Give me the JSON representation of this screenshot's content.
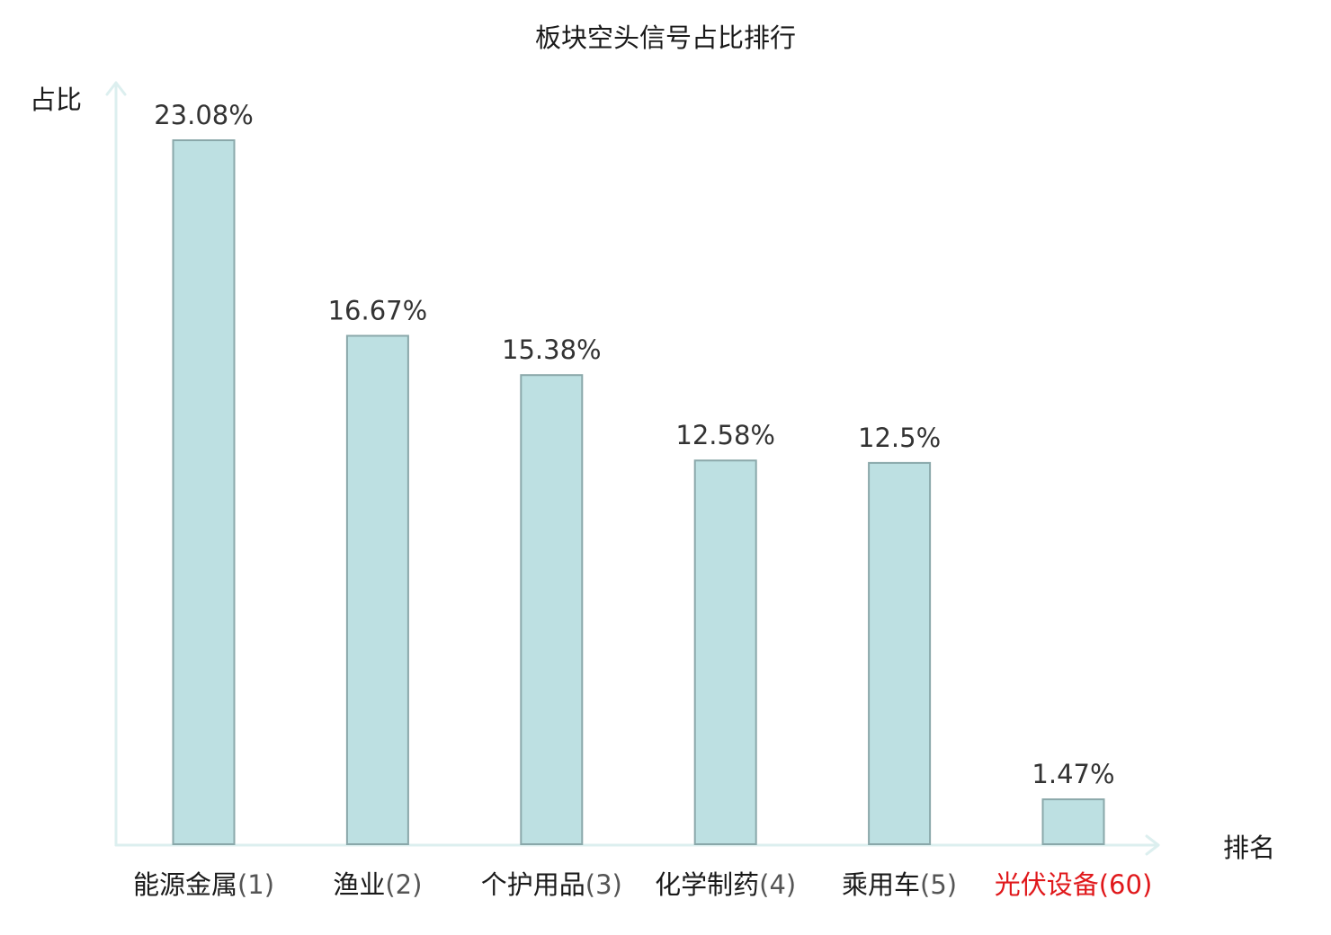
{
  "chart_data": {
    "type": "bar",
    "title": "板块空头信号占比排行",
    "ylabel": "占比",
    "xlabel": "排名",
    "categories": [
      {
        "name": "能源金属",
        "rank": "(1)",
        "highlight": false
      },
      {
        "name": "渔业",
        "rank": "(2)",
        "highlight": false
      },
      {
        "name": "个护用品",
        "rank": "(3)",
        "highlight": false
      },
      {
        "name": "化学制药",
        "rank": "(4)",
        "highlight": false
      },
      {
        "name": "乘用车",
        "rank": "(5)",
        "highlight": false
      },
      {
        "name": "光伏设备",
        "rank": "(60)",
        "highlight": true
      }
    ],
    "values": [
      23.08,
      16.67,
      15.38,
      12.58,
      12.5,
      1.47
    ],
    "value_labels": [
      "23.08%",
      "16.67%",
      "15.38%",
      "12.58%",
      "12.5%",
      "1.47%"
    ],
    "ylim": [
      0,
      25
    ],
    "grid": false,
    "legend": "none",
    "colors": {
      "bar_fill": "#bde0e2",
      "bar_stroke": "#8aa8aa",
      "axis": "#dcefef",
      "highlight": "#e0181b"
    }
  }
}
